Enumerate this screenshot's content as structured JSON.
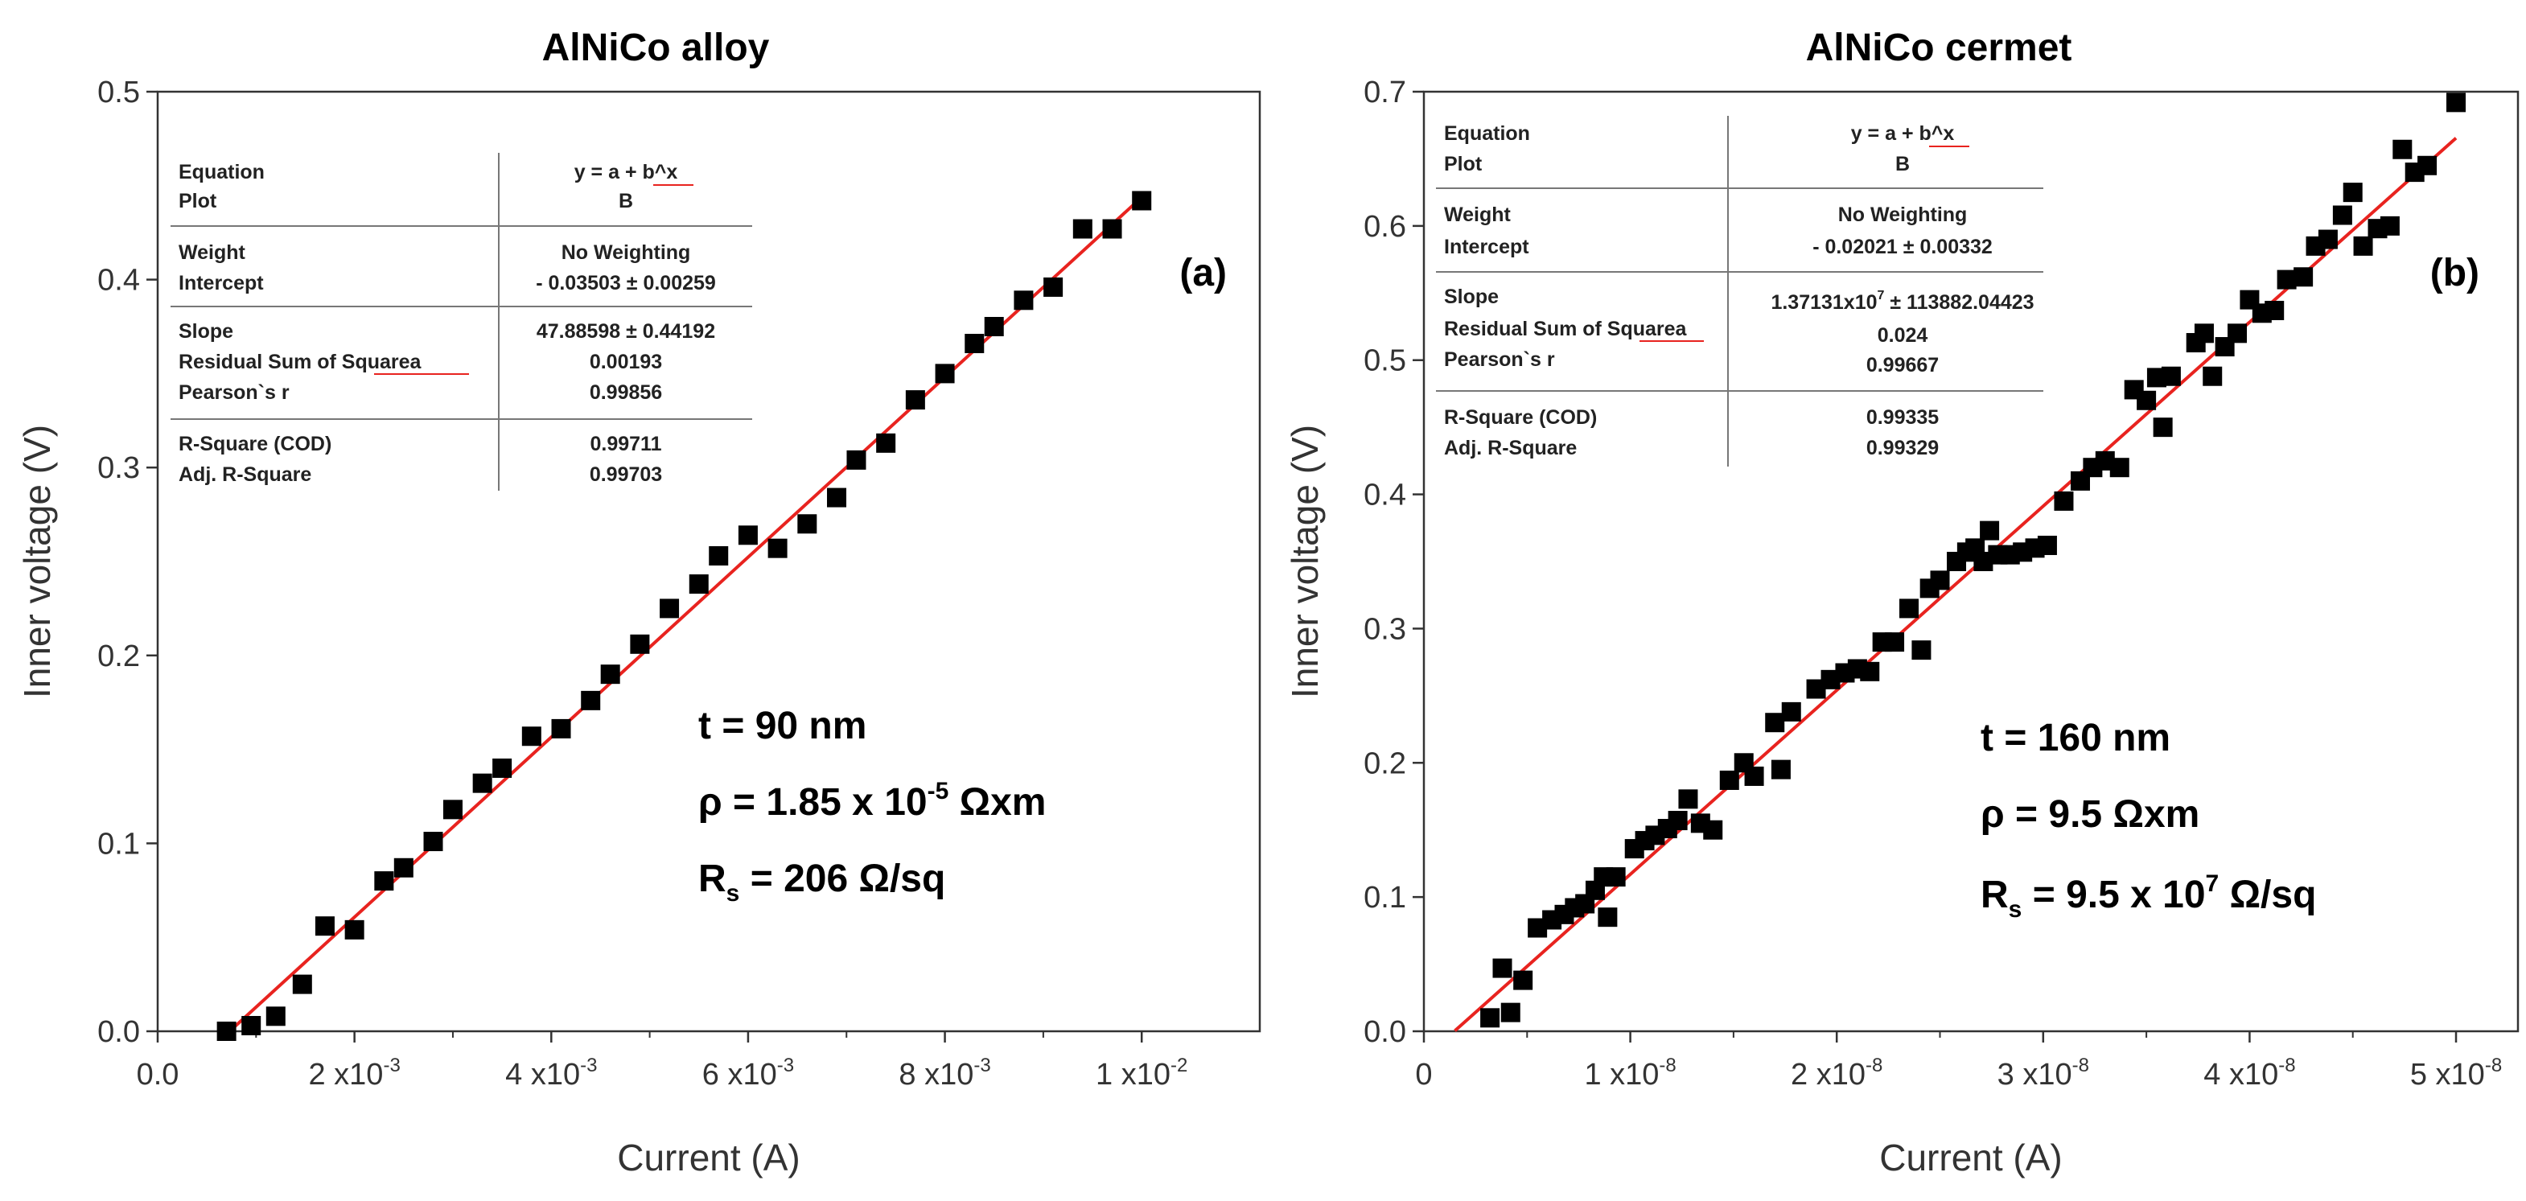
{
  "panels": [
    {
      "id": "a",
      "title": "AlNiCo alloy",
      "label": "(a)",
      "params": {
        "t": "t = 90 nm",
        "rho_main": "ρ = 1.85 x 10",
        "rho_exp": "-5",
        "rho_unit": " Ωxm",
        "rs_prefix": "R",
        "rs_sub": "s",
        "rs_main": " = 206 Ω/sq",
        "rs_exp": "",
        "rs_unit": ""
      },
      "fit_table": {
        "equation_label": "Equation",
        "equation_value": "y = a + b^x",
        "plot_label": "Plot",
        "plot_value": "B",
        "weight_label": "Weight",
        "weight_value": "No Weighting",
        "intercept_label": "Intercept",
        "intercept_value": "- 0.03503 ± 0.00259",
        "slope_label": "Slope",
        "slope_value": "47.88598 ± 0.44192",
        "slope_exp": "",
        "rss_label": "Residual Sum of Squarea",
        "rss_value": "0.00193",
        "pearson_label": "Pearson`s r",
        "pearson_value": "0.99856",
        "rsq_label": "R-Square (COD)",
        "rsq_value": "0.99711",
        "adjrsq_label": "Adj. R-Square",
        "adjrsq_value": "0.99703"
      }
    },
    {
      "id": "b",
      "title": "AlNiCo cermet",
      "label": "(b)",
      "params": {
        "t": "t = 160 nm",
        "rho_main": "ρ = 9.5 Ωxm",
        "rho_exp": "",
        "rho_unit": "",
        "rs_prefix": "R",
        "rs_sub": "s",
        "rs_main": " = 9.5 x 10",
        "rs_exp": "7",
        "rs_unit": " Ω/sq"
      },
      "fit_table": {
        "equation_label": "Equation",
        "equation_value": "y = a + b^x",
        "plot_label": "Plot",
        "plot_value": "B",
        "weight_label": "Weight",
        "weight_value": "No Weighting",
        "intercept_label": "Intercept",
        "intercept_value": "- 0.02021 ± 0.00332",
        "slope_label": "Slope",
        "slope_value": "1.37131x10",
        "slope_exp": "7",
        "slope_rest": " ± 113882.04423",
        "rss_label": "Residual Sum of Squarea",
        "rss_value": "0.024",
        "pearson_label": "Pearson`s r",
        "pearson_value": "0.99667",
        "rsq_label": "R-Square (COD)",
        "rsq_value": "0.99335",
        "adjrsq_label": "Adj. R-Square",
        "adjrsq_value": "0.99329"
      }
    }
  ],
  "chart_data": [
    {
      "type": "scatter",
      "title": "AlNiCo alloy",
      "xlabel": "Current (A)",
      "ylabel": "Inner voltage (V)",
      "xlim": [
        0,
        0.0112
      ],
      "ylim": [
        0,
        0.5
      ],
      "xticks": [
        {
          "v": 0,
          "label": "0.0",
          "exp": ""
        },
        {
          "v": 0.002,
          "label": "2 x10",
          "exp": "-3"
        },
        {
          "v": 0.004,
          "label": "4 x10",
          "exp": "-3"
        },
        {
          "v": 0.006,
          "label": "6 x10",
          "exp": "-3"
        },
        {
          "v": 0.008,
          "label": "8 x10",
          "exp": "-3"
        },
        {
          "v": 0.01,
          "label": "1 x10",
          "exp": "-2"
        }
      ],
      "yticks": [
        {
          "v": 0,
          "label": "0.0"
        },
        {
          "v": 0.1,
          "label": "0.1"
        },
        {
          "v": 0.2,
          "label": "0.2"
        },
        {
          "v": 0.3,
          "label": "0.3"
        },
        {
          "v": 0.4,
          "label": "0.4"
        },
        {
          "v": 0.5,
          "label": "0.5"
        }
      ],
      "fit": {
        "intercept": -0.03503,
        "slope": 47.88598,
        "x_start": 0.00073,
        "x_end": 0.01
      },
      "marker_color": "#000000",
      "fit_color": "#e8231f",
      "points": [
        [
          0.0007,
          0.0
        ],
        [
          0.00095,
          0.003
        ],
        [
          0.0012,
          0.008
        ],
        [
          0.00147,
          0.025
        ],
        [
          0.0017,
          0.056
        ],
        [
          0.002,
          0.054
        ],
        [
          0.0023,
          0.08
        ],
        [
          0.0025,
          0.087
        ],
        [
          0.0028,
          0.101
        ],
        [
          0.003,
          0.118
        ],
        [
          0.0033,
          0.132
        ],
        [
          0.0035,
          0.14
        ],
        [
          0.0038,
          0.157
        ],
        [
          0.0041,
          0.161
        ],
        [
          0.0044,
          0.176
        ],
        [
          0.0046,
          0.19
        ],
        [
          0.0049,
          0.206
        ],
        [
          0.0052,
          0.225
        ],
        [
          0.0055,
          0.238
        ],
        [
          0.0057,
          0.253
        ],
        [
          0.006,
          0.264
        ],
        [
          0.0063,
          0.257
        ],
        [
          0.0066,
          0.27
        ],
        [
          0.0069,
          0.284
        ],
        [
          0.0071,
          0.304
        ],
        [
          0.0074,
          0.313
        ],
        [
          0.0077,
          0.336
        ],
        [
          0.008,
          0.35
        ],
        [
          0.0083,
          0.366
        ],
        [
          0.0085,
          0.375
        ],
        [
          0.0088,
          0.389
        ],
        [
          0.0091,
          0.396
        ],
        [
          0.0094,
          0.427
        ],
        [
          0.0097,
          0.427
        ],
        [
          0.01,
          0.442
        ]
      ]
    },
    {
      "type": "scatter",
      "title": "AlNiCo cermet",
      "xlabel": "Current (A)",
      "ylabel": "Inner voltage (V)",
      "xlim": [
        0,
        5.3e-08
      ],
      "ylim": [
        0,
        0.7
      ],
      "xticks": [
        {
          "v": 0,
          "label": "0",
          "exp": ""
        },
        {
          "v": 1e-08,
          "label": "1 x10",
          "exp": "-8"
        },
        {
          "v": 2e-08,
          "label": "2 x10",
          "exp": "-8"
        },
        {
          "v": 3e-08,
          "label": "3 x10",
          "exp": "-8"
        },
        {
          "v": 4e-08,
          "label": "4 x10",
          "exp": "-8"
        },
        {
          "v": 5e-08,
          "label": "5 x10",
          "exp": "-8"
        }
      ],
      "yticks": [
        {
          "v": 0,
          "label": "0.0"
        },
        {
          "v": 0.1,
          "label": "0.1"
        },
        {
          "v": 0.2,
          "label": "0.2"
        },
        {
          "v": 0.3,
          "label": "0.3"
        },
        {
          "v": 0.4,
          "label": "0.4"
        },
        {
          "v": 0.5,
          "label": "0.5"
        },
        {
          "v": 0.6,
          "label": "0.6"
        },
        {
          "v": 0.7,
          "label": "0.7"
        }
      ],
      "fit": {
        "intercept": -0.02021,
        "slope": 13713100,
        "x_start": 1.5e-09,
        "x_end": 5e-08
      },
      "marker_color": "#000000",
      "fit_color": "#e8231f",
      "points": [
        [
          3.2e-09,
          0.01
        ],
        [
          3.8e-09,
          0.047
        ],
        [
          4.2e-09,
          0.014
        ],
        [
          4.8e-09,
          0.038
        ],
        [
          5.5e-09,
          0.077
        ],
        [
          6.2e-09,
          0.083
        ],
        [
          6.8e-09,
          0.087
        ],
        [
          7.3e-09,
          0.092
        ],
        [
          7.8e-09,
          0.095
        ],
        [
          8.3e-09,
          0.105
        ],
        [
          8.7e-09,
          0.115
        ],
        [
          8.9e-09,
          0.085
        ],
        [
          9.3e-09,
          0.115
        ],
        [
          1.02e-08,
          0.136
        ],
        [
          1.07e-08,
          0.142
        ],
        [
          1.12e-08,
          0.146
        ],
        [
          1.18e-08,
          0.151
        ],
        [
          1.23e-08,
          0.157
        ],
        [
          1.28e-08,
          0.173
        ],
        [
          1.34e-08,
          0.155
        ],
        [
          1.4e-08,
          0.15
        ],
        [
          1.48e-08,
          0.187
        ],
        [
          1.55e-08,
          0.2
        ],
        [
          1.6e-08,
          0.19
        ],
        [
          1.7e-08,
          0.23
        ],
        [
          1.73e-08,
          0.195
        ],
        [
          1.78e-08,
          0.238
        ],
        [
          1.9e-08,
          0.255
        ],
        [
          1.97e-08,
          0.262
        ],
        [
          2.04e-08,
          0.267
        ],
        [
          2.1e-08,
          0.27
        ],
        [
          2.16e-08,
          0.268
        ],
        [
          2.22e-08,
          0.29
        ],
        [
          2.28e-08,
          0.29
        ],
        [
          2.35e-08,
          0.315
        ],
        [
          2.41e-08,
          0.284
        ],
        [
          2.45e-08,
          0.33
        ],
        [
          2.5e-08,
          0.336
        ],
        [
          2.58e-08,
          0.35
        ],
        [
          2.63e-08,
          0.357
        ],
        [
          2.67e-08,
          0.36
        ],
        [
          2.71e-08,
          0.35
        ],
        [
          2.74e-08,
          0.373
        ],
        [
          2.78e-08,
          0.355
        ],
        [
          2.84e-08,
          0.355
        ],
        [
          2.9e-08,
          0.357
        ],
        [
          2.96e-08,
          0.36
        ],
        [
          3.02e-08,
          0.362
        ],
        [
          3.1e-08,
          0.395
        ],
        [
          3.18e-08,
          0.41
        ],
        [
          3.24e-08,
          0.42
        ],
        [
          3.3e-08,
          0.425
        ],
        [
          3.37e-08,
          0.42
        ],
        [
          3.44e-08,
          0.478
        ],
        [
          3.5e-08,
          0.47
        ],
        [
          3.55e-08,
          0.487
        ],
        [
          3.58e-08,
          0.45
        ],
        [
          3.62e-08,
          0.488
        ],
        [
          3.74e-08,
          0.513
        ],
        [
          3.78e-08,
          0.52
        ],
        [
          3.82e-08,
          0.488
        ],
        [
          3.88e-08,
          0.51
        ],
        [
          3.94e-08,
          0.52
        ],
        [
          4e-08,
          0.545
        ],
        [
          4.06e-08,
          0.535
        ],
        [
          4.12e-08,
          0.537
        ],
        [
          4.18e-08,
          0.56
        ],
        [
          4.26e-08,
          0.562
        ],
        [
          4.32e-08,
          0.585
        ],
        [
          4.38e-08,
          0.59
        ],
        [
          4.45e-08,
          0.608
        ],
        [
          4.5e-08,
          0.625
        ],
        [
          4.55e-08,
          0.585
        ],
        [
          4.62e-08,
          0.598
        ],
        [
          4.68e-08,
          0.6
        ],
        [
          4.74e-08,
          0.657
        ],
        [
          4.8e-08,
          0.64
        ],
        [
          4.86e-08,
          0.645
        ],
        [
          5e-08,
          0.692
        ]
      ]
    }
  ]
}
